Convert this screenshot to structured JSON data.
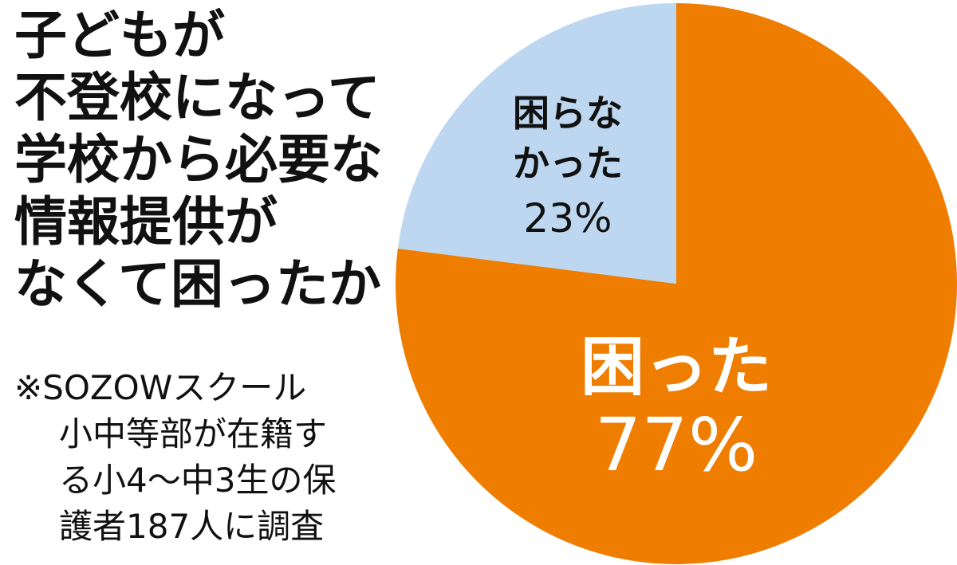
{
  "title_lines": [
    "子どもが",
    "不登校になって",
    "学校から必要な",
    "情報提供が",
    "なくて困ったか"
  ],
  "note_lines": [
    "※SOZOWスクール",
    "小中等部が在籍す",
    "る小4〜中3生の保",
    "護者187人に調査"
  ],
  "colors": {
    "troubled": "#ee7d00",
    "not_troubled": "#bdd7f0"
  },
  "chart_data": {
    "type": "pie",
    "title": "子どもが不登校になって学校から必要な情報提供がなくて困ったか",
    "start": "12 o'clock, clockwise",
    "slices": [
      {
        "label": "困った",
        "value": 77,
        "display": "77%",
        "color": "#ee7d00"
      },
      {
        "label": "困らなかった",
        "value": 23,
        "display": "23%",
        "color": "#bdd7f0"
      }
    ],
    "labels": {
      "troubled_lines": [
        "困った",
        "77%"
      ],
      "not_troubled_lines": [
        "困らな",
        "かった",
        "23%"
      ]
    }
  }
}
